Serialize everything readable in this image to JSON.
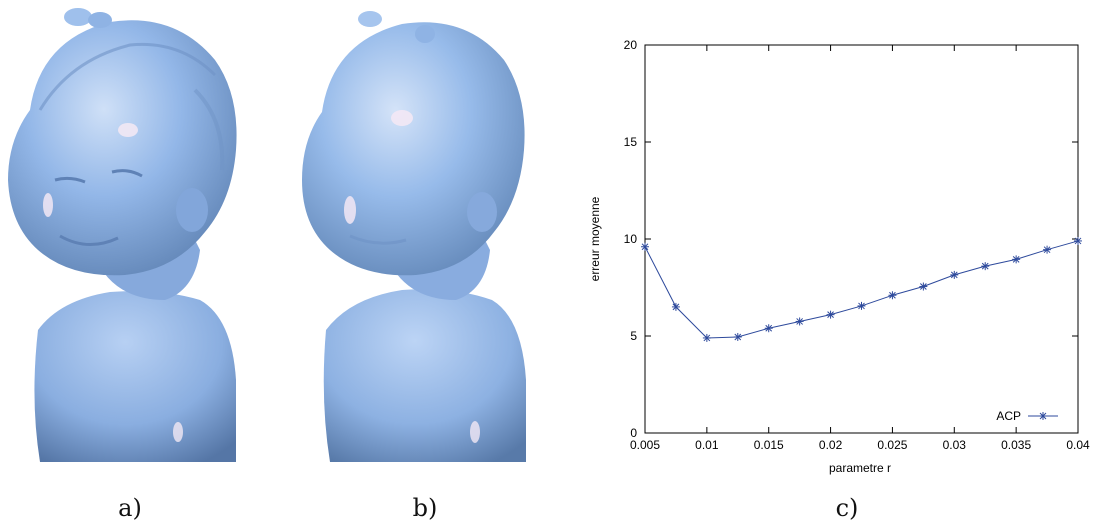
{
  "figure": {
    "captions": [
      "a)",
      "b)",
      "c)"
    ],
    "busts": [
      {
        "name": "original bust (a)",
        "surface_color": "#8fb4e6"
      },
      {
        "name": "smoothed bust (b)",
        "surface_color": "#95b9ea"
      }
    ]
  },
  "chart_data": {
    "type": "line",
    "title": "",
    "xlabel": "parametre r",
    "ylabel": "erreur moyenne",
    "xlim": [
      0.005,
      0.04
    ],
    "ylim": [
      0,
      20
    ],
    "x_ticks": [
      "0.005",
      "0.01",
      "0.015",
      "0.02",
      "0.025",
      "0.03",
      "0.035",
      "0.04"
    ],
    "y_ticks": [
      "0",
      "5",
      "10",
      "15",
      "20"
    ],
    "grid": false,
    "legend_position": "bottom-right",
    "x": [
      0.005,
      0.0075,
      0.01,
      0.0125,
      0.015,
      0.0175,
      0.02,
      0.0225,
      0.025,
      0.0275,
      0.03,
      0.0325,
      0.035,
      0.0375,
      0.04
    ],
    "series": [
      {
        "name": "ACP",
        "color": "#2e4a9c",
        "marker": "asterisk",
        "values": [
          9.6,
          6.5,
          4.9,
          4.95,
          5.4,
          5.75,
          6.1,
          6.55,
          7.1,
          7.55,
          8.15,
          8.6,
          8.95,
          9.45,
          9.9
        ]
      }
    ]
  }
}
